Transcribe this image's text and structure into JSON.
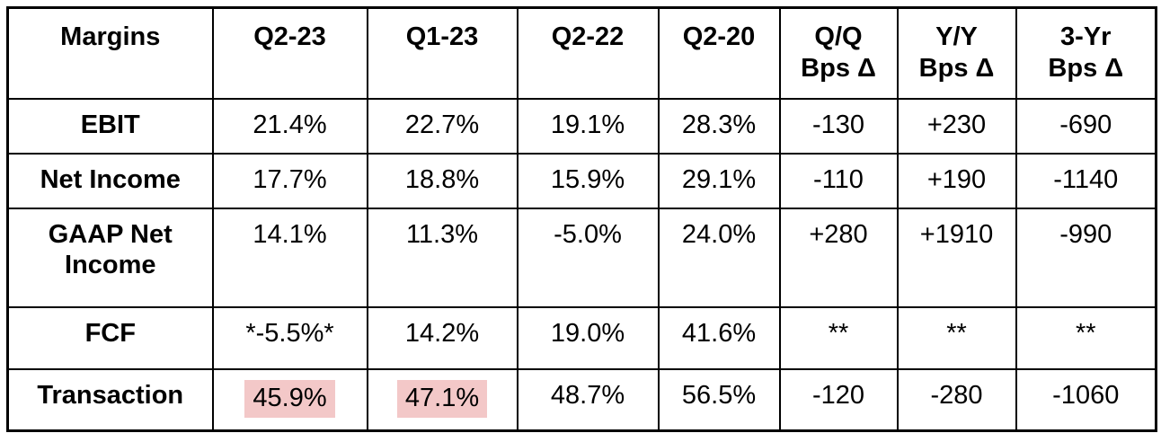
{
  "colors": {
    "highlight": "#f3c8c8",
    "border": "#000000",
    "text": "#000000",
    "background": "#ffffff"
  },
  "chart_data": {
    "type": "table",
    "title": "Margins",
    "columns": [
      "Margins",
      "Q2-23",
      "Q1-23",
      "Q2-22",
      "Q2-20",
      "Q/Q\nBps Δ",
      "Y/Y\nBps Δ",
      "3-Yr\nBps Δ"
    ],
    "rows": [
      {
        "label": "EBIT",
        "values": [
          "21.4%",
          "22.7%",
          "19.1%",
          "28.3%",
          "-130",
          "+230",
          "-690"
        ]
      },
      {
        "label": "Net Income",
        "values": [
          "17.7%",
          "18.8%",
          "15.9%",
          "29.1%",
          "-110",
          "+190",
          "-1140"
        ]
      },
      {
        "label": "GAAP Net Income",
        "values": [
          "14.1%",
          "11.3%",
          "-5.0%",
          "24.0%",
          "+280",
          "+1910",
          "-990"
        ]
      },
      {
        "label": "FCF",
        "values": [
          "*-5.5%*",
          "14.2%",
          "19.0%",
          "41.6%",
          "**",
          "**",
          "**"
        ]
      },
      {
        "label": "Transaction",
        "values": [
          "45.9%",
          "47.1%",
          "48.7%",
          "56.5%",
          "-120",
          "-280",
          "-1060"
        ],
        "highlighted_columns": [
          "Q2-23",
          "Q1-23"
        ]
      }
    ]
  }
}
